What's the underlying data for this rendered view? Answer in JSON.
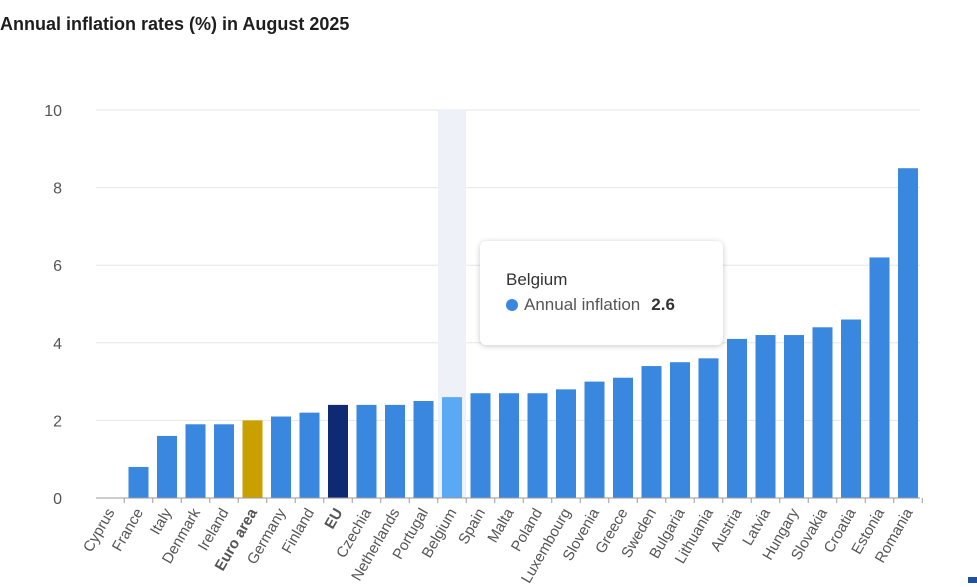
{
  "chart_data": {
    "type": "bar",
    "title": "Annual inflation rates (%) in August 2025",
    "xlabel": "",
    "ylabel": "",
    "ylim": [
      0,
      10
    ],
    "yticks": [
      0,
      2,
      4,
      6,
      8,
      10
    ],
    "grid": true,
    "legend": "none",
    "categories": [
      "Cyprus",
      "France",
      "Italy",
      "Denmark",
      "Ireland",
      "Euro area",
      "Germany",
      "Finland",
      "EU",
      "Czechia",
      "Netherlands",
      "Portugal",
      "Belgium",
      "Spain",
      "Malta",
      "Poland",
      "Luxembourg",
      "Slovenia",
      "Greece",
      "Sweden",
      "Bulgaria",
      "Lithuania",
      "Austria",
      "Latvia",
      "Hungary",
      "Slovakia",
      "Croatia",
      "Estonia",
      "Romania"
    ],
    "bold_categories": [
      "Euro area",
      "EU"
    ],
    "series": [
      {
        "name": "Annual inflation",
        "values": [
          0.0,
          0.8,
          1.6,
          1.9,
          1.9,
          2.0,
          2.1,
          2.2,
          2.4,
          2.4,
          2.4,
          2.5,
          2.6,
          2.7,
          2.7,
          2.7,
          2.8,
          3.0,
          3.1,
          3.4,
          3.5,
          3.6,
          4.1,
          4.2,
          4.2,
          4.4,
          4.6,
          6.2,
          8.5
        ]
      }
    ],
    "colors": {
      "default": "#3a87e0",
      "euro_area": "#c9a000",
      "eu": "#0e2a72",
      "highlighted": "#5aa9f5",
      "hover_band": "#eef2f8",
      "grid": "#e6e6e6",
      "axis": "#9a9a9a",
      "tick_label": "#555555"
    },
    "highlighted_category": "Belgium",
    "tooltip": {
      "title": "Belgium",
      "series_name": "Annual inflation",
      "value": "2.6"
    }
  }
}
